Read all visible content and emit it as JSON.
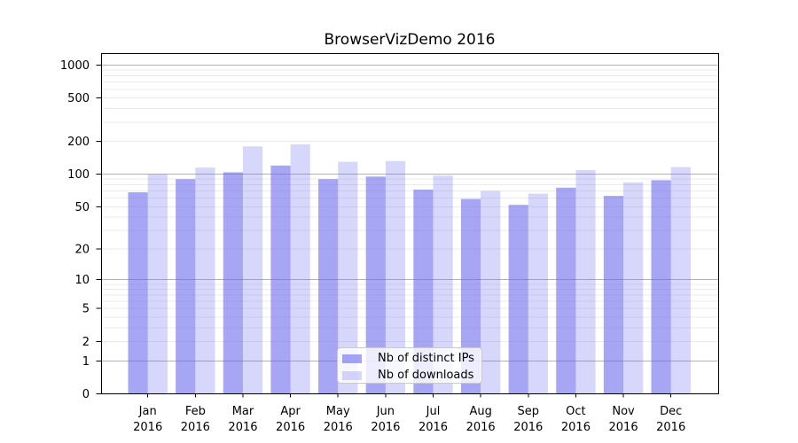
{
  "chart_data": {
    "type": "bar",
    "title": "BrowserVizDemo 2016",
    "categories": [
      "Jan 2016",
      "Feb 2016",
      "Mar 2016",
      "Apr 2016",
      "May 2016",
      "Jun 2016",
      "Jul 2016",
      "Aug 2016",
      "Sep 2016",
      "Oct 2016",
      "Nov 2016",
      "Dec 2016"
    ],
    "series": [
      {
        "name": "Nb of distinct IPs",
        "color": "rgba(102,102,238,0.58)",
        "values": [
          68,
          90,
          104,
          120,
          90,
          95,
          72,
          59,
          52,
          75,
          63,
          88
        ]
      },
      {
        "name": "Nb of downloads",
        "color": "rgba(102,102,238,0.26)",
        "values": [
          100,
          115,
          180,
          188,
          130,
          132,
          97,
          70,
          66,
          109,
          84,
          116
        ]
      }
    ],
    "y_axis": {
      "scale": "log1p",
      "ylim": [
        0,
        1280
      ],
      "tick_values": [
        0,
        1,
        2,
        5,
        10,
        20,
        50,
        100,
        200,
        500,
        1000
      ],
      "major_grid_values": [
        1,
        10,
        100,
        1000
      ],
      "minor_grid_values": [
        2,
        3,
        4,
        5,
        6,
        7,
        8,
        9,
        20,
        30,
        40,
        50,
        60,
        70,
        80,
        90,
        200,
        300,
        400,
        500,
        600,
        700,
        800,
        900
      ]
    },
    "legend": {
      "entries": [
        "Nb of distinct IPs",
        "Nb of downloads"
      ],
      "position": "lower-center"
    },
    "grid": {
      "major_color": "#b2b2b2",
      "minor_color": "#ebebeb"
    },
    "spine_color": "#000000",
    "background": "#ffffff"
  }
}
